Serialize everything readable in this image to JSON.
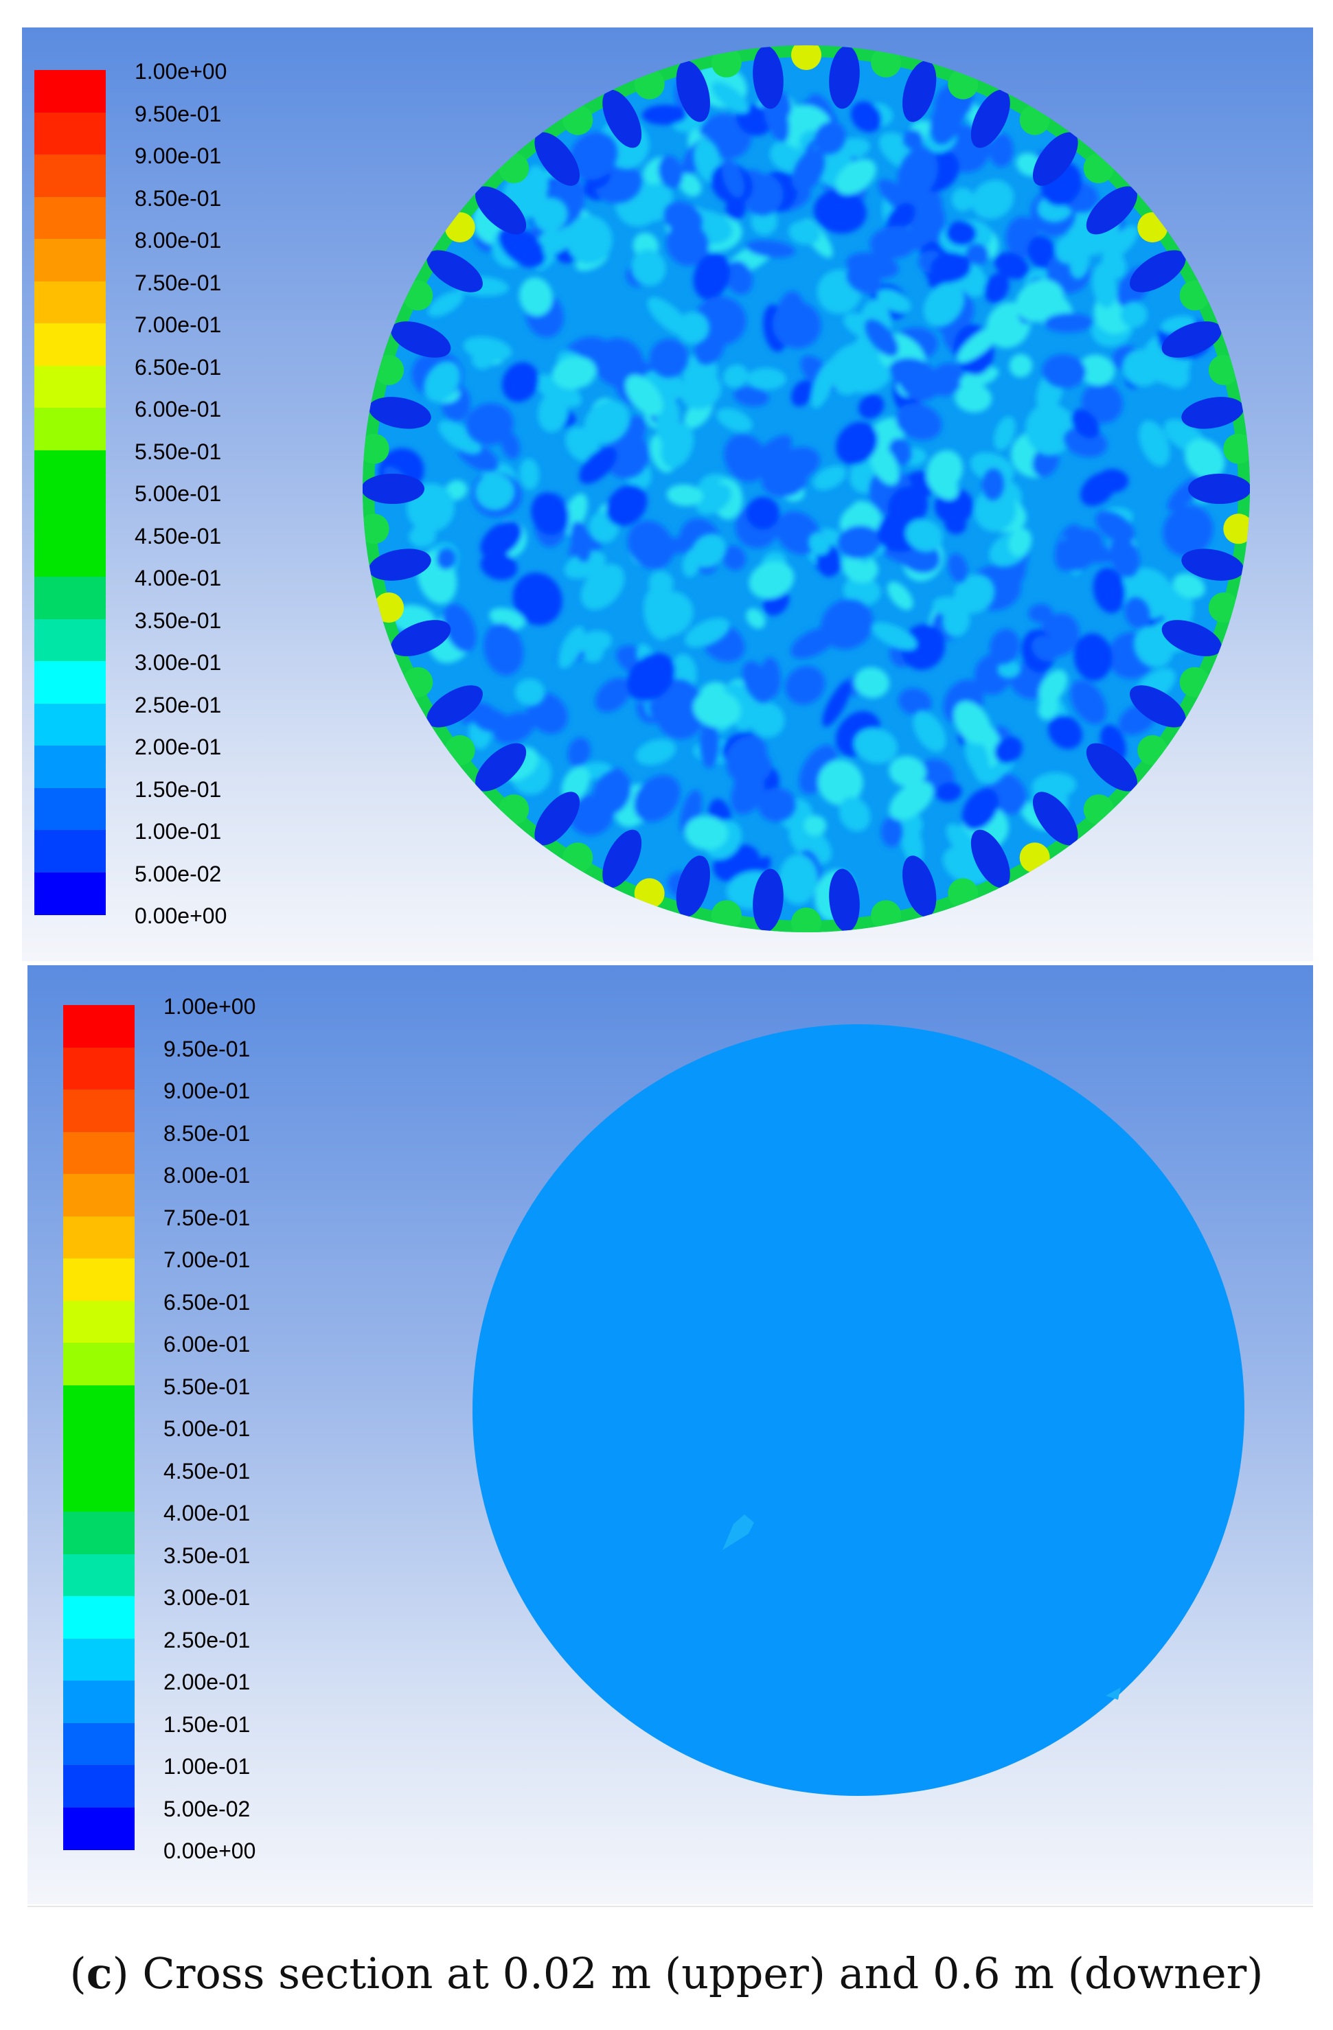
{
  "caption": {
    "label": "c",
    "text": " Cross section at 0.02 m (upper) and 0.6 m (downer)"
  },
  "colorbar": {
    "ticks": [
      "1.00e+00",
      "9.50e-01",
      "9.00e-01",
      "8.50e-01",
      "8.00e-01",
      "7.50e-01",
      "7.00e-01",
      "6.50e-01",
      "6.00e-01",
      "5.50e-01",
      "5.00e-01",
      "4.50e-01",
      "4.00e-01",
      "3.50e-01",
      "3.00e-01",
      "2.50e-01",
      "2.00e-01",
      "1.50e-01",
      "1.00e-01",
      "5.00e-02",
      "0.00e+00"
    ],
    "colors": [
      "#ff0000",
      "#ff2600",
      "#ff4d00",
      "#ff7300",
      "#ff9900",
      "#ffbf00",
      "#ffe600",
      "#ccff00",
      "#99ff00",
      "#00e600",
      "#00e600",
      "#00e600",
      "#00d966",
      "#00e6a6",
      "#00ffff",
      "#00ccff",
      "#0099ff",
      "#0066ff",
      "#0040ff",
      "#0000ff"
    ]
  },
  "panels": [
    {
      "name": "upper",
      "cross_section": "0.02 m"
    },
    {
      "name": "lower",
      "cross_section": "0.6 m"
    }
  ]
}
